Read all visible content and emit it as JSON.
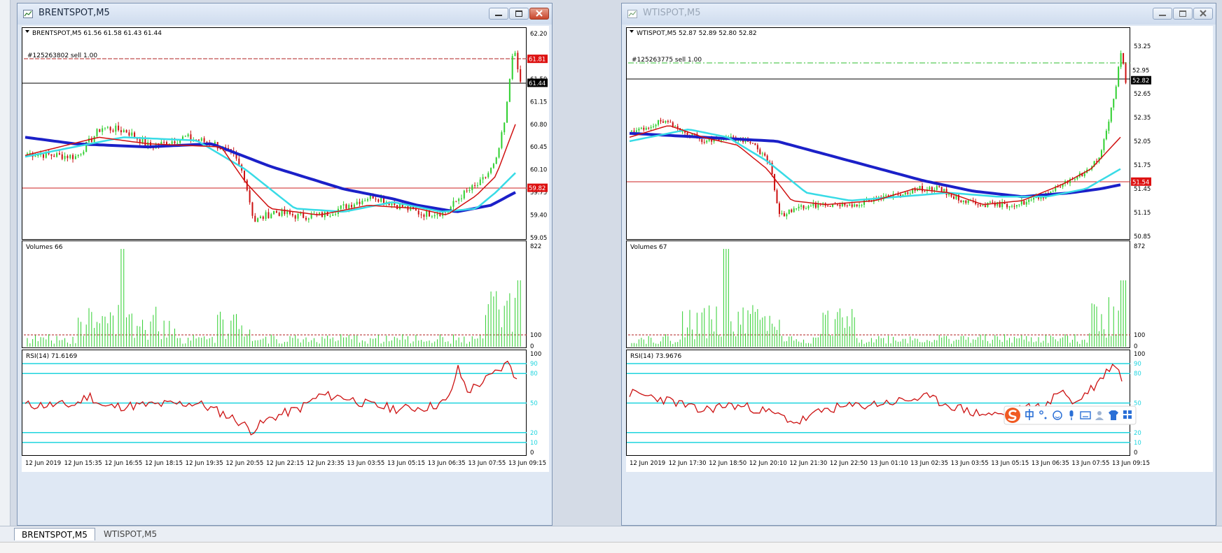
{
  "windows": [
    {
      "id": "brent",
      "title": "BRENTSPOT,M5",
      "active": true,
      "header": "BRENTSPOT,M5  61.56 61.58 61.43 61.44",
      "order_label": "#125263802 sell 1.00",
      "price_ticks": [
        "62.20",
        "61.81",
        "61.50",
        "61.44",
        "61.15",
        "60.80",
        "60.45",
        "60.10",
        "59.82",
        "59.75",
        "59.40",
        "59.05"
      ],
      "order_price": "61.81",
      "current_price": "61.44",
      "level_price": "59.82",
      "volumes_label": "Volumes 66",
      "volume_ticks": [
        "822",
        "100",
        "0"
      ],
      "rsi_label": "RSI(14) 71.6169",
      "rsi_ticks": [
        "100",
        "90",
        "80",
        "50",
        "20",
        "10",
        "0"
      ],
      "time_labels": [
        "12 Jun 2019",
        "12 Jun 15:35",
        "12 Jun 16:55",
        "12 Jun 18:15",
        "12 Jun 19:35",
        "12 Jun 20:55",
        "12 Jun 22:15",
        "12 Jun 23:35",
        "13 Jun 03:55",
        "13 Jun 05:15",
        "13 Jun 06:35",
        "13 Jun 07:55",
        "13 Jun 09:15"
      ]
    },
    {
      "id": "wti",
      "title": "WTISPOT,M5",
      "active": false,
      "header": "WTISPOT,M5  52.87 52.89 52.80 52.82",
      "order_label": "#125263775 sell 1.00",
      "price_ticks": [
        "53.25",
        "52.95",
        "52.82",
        "52.65",
        "52.35",
        "52.05",
        "51.75",
        "51.54",
        "51.45",
        "51.15",
        "50.85"
      ],
      "order_price": "52.95",
      "current_price": "52.82",
      "level_price": "51.54",
      "volumes_label": "Volumes 67",
      "volume_ticks": [
        "872",
        "100",
        "0"
      ],
      "rsi_label": "RSI(14) 73.9676",
      "rsi_ticks": [
        "100",
        "90",
        "80",
        "50",
        "20",
        "10",
        "0"
      ],
      "time_labels": [
        "12 Jun 2019",
        "12 Jun 17:30",
        "12 Jun 18:50",
        "12 Jun 20:10",
        "12 Jun 21:30",
        "12 Jun 22:50",
        "13 Jun 01:10",
        "13 Jun 02:35",
        "13 Jun 03:55",
        "13 Jun 05:15",
        "13 Jun 06:35",
        "13 Jun 07:55",
        "13 Jun 09:15"
      ]
    }
  ],
  "tabs": [
    {
      "label": "BRENTSPOT,M5",
      "active": true
    },
    {
      "label": "WTISPOT,M5",
      "active": false
    }
  ],
  "colors": {
    "candle_up": "#2fcf2f",
    "candle_down": "#cc1111",
    "ma_fast": "#d01010",
    "ma_mid": "#38dbe6",
    "ma_slow": "#1b20c8",
    "rsi_line": "#cc1111",
    "level_line": "#1fd4de"
  },
  "icons": {
    "ime_toolbar": [
      "sogou-logo-icon",
      "chinese-mode-icon",
      "punctuation-icon",
      "emoji-icon",
      "microphone-icon",
      "keyboard-icon",
      "user-icon",
      "skin-icon",
      "grid-menu-icon"
    ]
  }
}
